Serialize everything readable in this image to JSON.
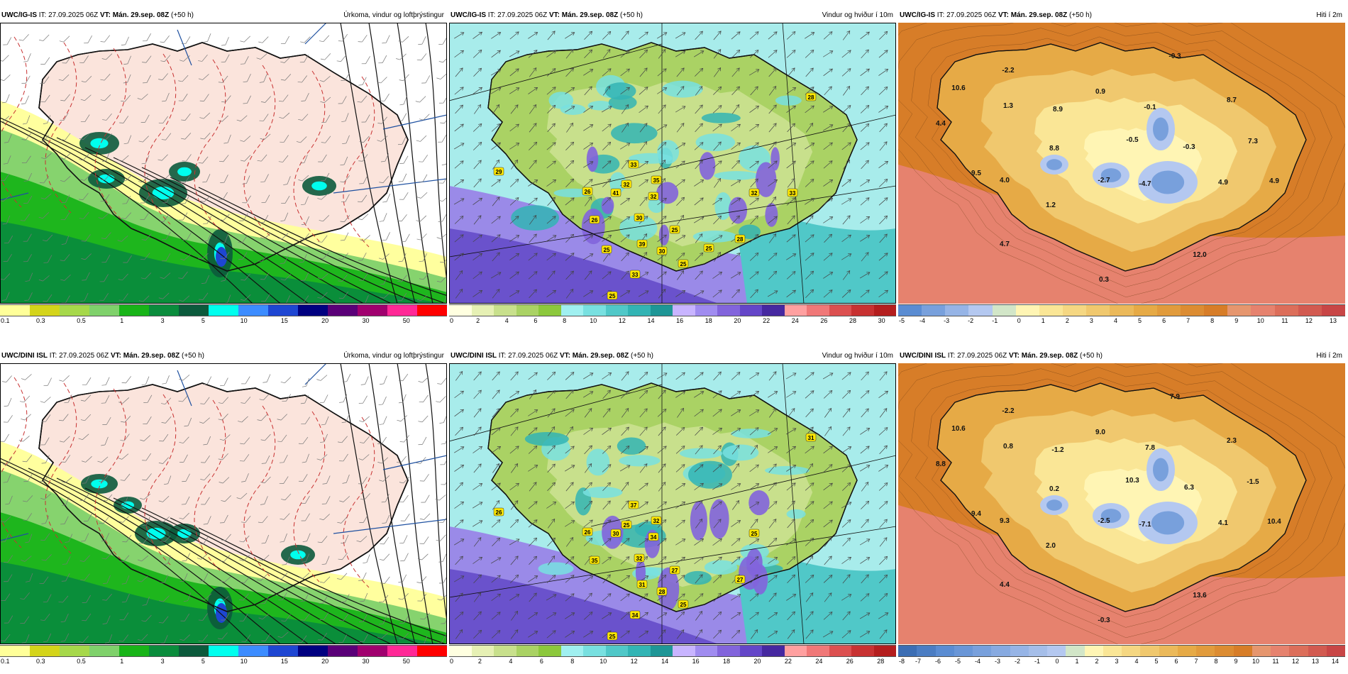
{
  "panels": [
    {
      "id": "p1",
      "row": 0,
      "col": 0,
      "kind": "precip",
      "model": "UWC/IG-IS",
      "it_label": "IT:",
      "it": "27.09.2025 06Z",
      "vt_label": "VT:",
      "vt": "Mán. 29.sep. 08Z",
      "lead": "(+50 h)",
      "title": "Úrkoma, vindur og loftþrýstingur",
      "colorbar": {
        "colors": [
          "#ffff99",
          "#d4d41a",
          "#a6d84a",
          "#7fd16b",
          "#18b418",
          "#0a8c3c",
          "#0c5a3c",
          "#00ffee",
          "#3c8cff",
          "#1e46d2",
          "#000080",
          "#5a0078",
          "#a0006e",
          "#ff2896",
          "#ff0000"
        ],
        "ticks": [
          "0.1",
          "0.3",
          "0.5",
          "1",
          "3",
          "5",
          "10",
          "15",
          "20",
          "30",
          "50"
        ]
      }
    },
    {
      "id": "p2",
      "row": 0,
      "col": 1,
      "kind": "wind",
      "model": "UWC/IG-IS",
      "it_label": "IT:",
      "it": "27.09.2025 06Z",
      "vt_label": "VT:",
      "vt": "Mán. 29.sep. 08Z",
      "lead": "(+50 h)",
      "title": "Vindur og hviður í 10m",
      "gust_labels": [
        "29",
        "26",
        "41",
        "32",
        "35",
        "33",
        "32",
        "28",
        "32",
        "26",
        "30",
        "25",
        "39",
        "30",
        "25",
        "33",
        "28",
        "25",
        "33",
        "25",
        "25"
      ],
      "colorbar": {
        "colors": [
          "#ffffe0",
          "#e6f0b4",
          "#c8e08c",
          "#aad264",
          "#8cc83c",
          "#a0f0f0",
          "#78e0e0",
          "#50c8c8",
          "#32b4b4",
          "#1e9696",
          "#c8b4ff",
          "#a08cf0",
          "#8264dc",
          "#6446c8",
          "#4628a0",
          "#ffa0a0",
          "#f07878",
          "#dc5050",
          "#c83232",
          "#b41e1e"
        ],
        "ticks": [
          "0",
          "2",
          "4",
          "6",
          "8",
          "10",
          "12",
          "14",
          "16",
          "18",
          "20",
          "22",
          "24",
          "26",
          "28",
          "30"
        ]
      }
    },
    {
      "id": "p3",
      "row": 0,
      "col": 2,
      "kind": "temp",
      "model": "UWC/IG-IS",
      "it_label": "IT:",
      "it": "27.09.2025 06Z",
      "vt_label": "VT:",
      "vt": "Mán. 29.sep. 08Z",
      "lead": "(+50 h)",
      "title": "Hiti í 2m",
      "temp_labels": [
        "-0.3",
        "-2.2",
        "10.6",
        "1.3",
        "0.9",
        "8.9",
        "-0.1",
        "8.7",
        "4.4",
        "8.8",
        "-0.5",
        "-0.3",
        "7.3",
        "9.5",
        "4.0",
        "-2.7",
        "-4.7",
        "4.9",
        "4.9",
        "1.2",
        "4.7",
        "12.0",
        "0.3"
      ],
      "colorbar": {
        "colors": [
          "#5a8cd2",
          "#78a0dc",
          "#96b4e6",
          "#b4c8f0",
          "#d2e6c8",
          "#fff5b4",
          "#fae696",
          "#f5d782",
          "#f0c86e",
          "#ebb95a",
          "#e6aa46",
          "#e19b3c",
          "#dc8c32",
          "#d77d28",
          "#e6966e",
          "#e6826e",
          "#dc6e5a",
          "#d25a50",
          "#c84646"
        ],
        "ticks": [
          "-5",
          "-4",
          "-3",
          "-2",
          "-1",
          "0",
          "1",
          "2",
          "3",
          "4",
          "5",
          "6",
          "7",
          "8",
          "9",
          "10",
          "11",
          "12",
          "13"
        ]
      }
    },
    {
      "id": "p4",
      "row": 1,
      "col": 0,
      "kind": "precip",
      "model": "UWC/DINI ISL",
      "it_label": "IT:",
      "it": "27.09.2025 06Z",
      "vt_label": "VT:",
      "vt": "Mán. 29.sep. 08Z",
      "lead": "(+50 h)",
      "title": "Úrkoma, vindur og loftþrýstingur",
      "colorbar": {
        "colors": [
          "#ffff99",
          "#d4d41a",
          "#a6d84a",
          "#7fd16b",
          "#18b418",
          "#0a8c3c",
          "#0c5a3c",
          "#00ffee",
          "#3c8cff",
          "#1e46d2",
          "#000080",
          "#5a0078",
          "#a0006e",
          "#ff2896",
          "#ff0000"
        ],
        "ticks": [
          "0.1",
          "0.3",
          "0.5",
          "1",
          "3",
          "5",
          "10",
          "15",
          "20",
          "30",
          "50"
        ]
      }
    },
    {
      "id": "p5",
      "row": 1,
      "col": 1,
      "kind": "wind",
      "model": "UWC/DINI ISL",
      "it_label": "IT:",
      "it": "27.09.2025 06Z",
      "vt_label": "VT:",
      "vt": "Mán. 29.sep. 08Z",
      "lead": "(+50 h)",
      "title": "Vindur og hviður í 10m",
      "gust_labels": [
        "26",
        "26",
        "30",
        "25",
        "32",
        "37",
        "34",
        "31",
        "25",
        "35",
        "32",
        "27",
        "31",
        "28",
        "25",
        "34",
        "27",
        "25"
      ],
      "colorbar": {
        "colors": [
          "#ffffe0",
          "#e6f0b4",
          "#c8e08c",
          "#aad264",
          "#8cc83c",
          "#a0f0f0",
          "#78e0e0",
          "#50c8c8",
          "#32b4b4",
          "#1e9696",
          "#c8b4ff",
          "#a08cf0",
          "#8264dc",
          "#6446c8",
          "#4628a0",
          "#ffa0a0",
          "#f07878",
          "#dc5050",
          "#c83232",
          "#b41e1e"
        ],
        "ticks": [
          "0",
          "2",
          "4",
          "6",
          "8",
          "10",
          "12",
          "14",
          "16",
          "18",
          "20",
          "22",
          "24",
          "26",
          "28"
        ]
      }
    },
    {
      "id": "p6",
      "row": 1,
      "col": 2,
      "kind": "temp",
      "model": "UWC/DINI ISL",
      "it_label": "IT:",
      "it": "27.09.2025 06Z",
      "vt_label": "VT:",
      "vt": "Mán. 29.sep. 08Z",
      "lead": "(+50 h)",
      "title": "Hiti í 2m",
      "temp_labels": [
        "7.9",
        "-2.2",
        "10.6",
        "0.8",
        "9.0",
        "-1.2",
        "7.8",
        "2.3",
        "8.8",
        "0.2",
        "10.3",
        "6.3",
        "-1.5",
        "9.4",
        "9.3",
        "-2.5",
        "-7.1",
        "4.1",
        "10.4",
        "2.0",
        "4.4",
        "13.6",
        "-0.3"
      ],
      "colorbar": {
        "colors": [
          "#3c6eb4",
          "#4b7dc3",
          "#5a8cd2",
          "#6996d7",
          "#78a0dc",
          "#87aae1",
          "#96b4e6",
          "#a5bee9",
          "#b4c8f0",
          "#d2e6c8",
          "#fff5b4",
          "#fae696",
          "#f5d782",
          "#f0c86e",
          "#ebb95a",
          "#e6aa46",
          "#e19b3c",
          "#dc8c32",
          "#d77d28",
          "#e6966e",
          "#e6826e",
          "#dc6e5a",
          "#d25a50",
          "#c84646"
        ],
        "ticks": [
          "-8",
          "-7",
          "-6",
          "-5",
          "-4",
          "-3",
          "-2",
          "-1",
          "0",
          "1",
          "2",
          "3",
          "4",
          "5",
          "6",
          "7",
          "8",
          "9",
          "10",
          "11",
          "12",
          "13",
          "14"
        ]
      }
    }
  ]
}
